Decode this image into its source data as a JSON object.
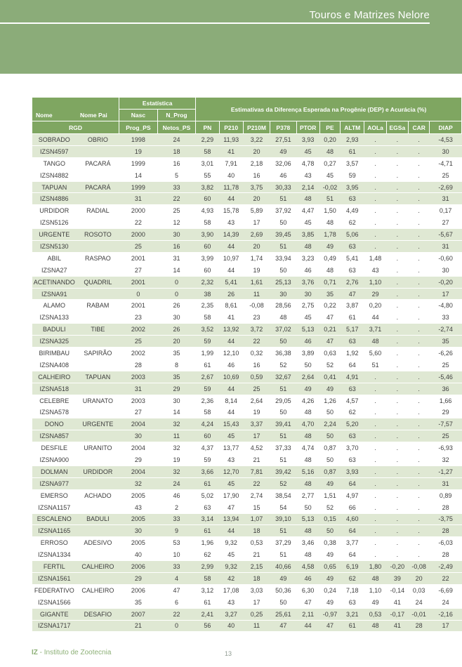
{
  "banner": {
    "title": "Touros e Matrizes Nelore"
  },
  "footer": {
    "org_bold": "IZ",
    "org_rest": " - Instituto de Zootecnia",
    "page_number": "13"
  },
  "colors": {
    "banner_green": "#8bac79",
    "header_green": "#7fa661",
    "row_green": "#dfe8d3",
    "text_dark": "#3d3d3d",
    "footer_green": "#8db077",
    "page_num_gray": "#8f9b91"
  },
  "table": {
    "header": {
      "nome": "Nome",
      "nome_pai": "Nome Pai",
      "rgd": "RGD",
      "estatistica": "Estatística",
      "nasc": "Nasc",
      "n_prog": "N_Prog",
      "prog_ps": "Prog_PS",
      "netos_ps": "Netos_PS",
      "dep_title": "Estimativas da Diferença Esperada na Progênie (DEP) e Acurácia (%)",
      "dep_cols": [
        "PN",
        "P210",
        "P210M",
        "P378",
        "PTOR",
        "PE",
        "ALTM",
        "AOLa",
        "EGSa",
        "CAR",
        "DIAP"
      ]
    },
    "rows": [
      {
        "nome": "SOBRADO",
        "rgd": "IZSN4597",
        "pai": "OBRIO",
        "dep": [
          "1998",
          "24",
          "2,29",
          "11,93",
          "3,22",
          "27,51",
          "3,93",
          "0,20",
          "2,93",
          ".",
          ".",
          ".",
          "-4,53"
        ],
        "acc": [
          "19",
          "18",
          "58",
          "41",
          "20",
          "49",
          "45",
          "48",
          "61",
          ".",
          ".",
          ".",
          "30"
        ]
      },
      {
        "nome": "TANGO",
        "rgd": "IZSN4882",
        "pai": "PACARÁ",
        "dep": [
          "1999",
          "16",
          "3,01",
          "7,91",
          "2,18",
          "32,06",
          "4,78",
          "0,27",
          "3,57",
          ".",
          ".",
          ".",
          "-4,71"
        ],
        "acc": [
          "14",
          "5",
          "55",
          "40",
          "16",
          "46",
          "43",
          "45",
          "59",
          ".",
          ".",
          ".",
          "25"
        ]
      },
      {
        "nome": "TAPUAN",
        "rgd": "IZSN4886",
        "pai": "PACARÁ",
        "dep": [
          "1999",
          "33",
          "3,82",
          "11,78",
          "3,75",
          "30,33",
          "2,14",
          "-0,02",
          "3,95",
          ".",
          ".",
          ".",
          "-2,69"
        ],
        "acc": [
          "31",
          "22",
          "60",
          "44",
          "20",
          "51",
          "48",
          "51",
          "63",
          ".",
          ".",
          ".",
          "31"
        ]
      },
      {
        "nome": "URDIDOR",
        "rgd": "IZSN5126",
        "pai": "RADIAL",
        "dep": [
          "2000",
          "25",
          "4,93",
          "15,78",
          "5,89",
          "37,92",
          "4,47",
          "1,50",
          "4,49",
          ".",
          ".",
          ".",
          "0,17"
        ],
        "acc": [
          "22",
          "12",
          "58",
          "43",
          "17",
          "50",
          "45",
          "48",
          "62",
          ".",
          ".",
          ".",
          "27"
        ]
      },
      {
        "nome": "URGENTE",
        "rgd": "IZSN5130",
        "pai": "ROSOTO",
        "dep": [
          "2000",
          "30",
          "3,90",
          "14,39",
          "2,69",
          "39,45",
          "3,85",
          "1,78",
          "5,06",
          ".",
          ".",
          ".",
          "-5,67"
        ],
        "acc": [
          "25",
          "16",
          "60",
          "44",
          "20",
          "51",
          "48",
          "49",
          "63",
          ".",
          ".",
          ".",
          "31"
        ]
      },
      {
        "nome": "ABIL",
        "rgd": "IZSNA27",
        "pai": "RASPAO",
        "dep": [
          "2001",
          "31",
          "3,99",
          "10,97",
          "1,74",
          "33,94",
          "3,23",
          "0,49",
          "5,41",
          "1,48",
          ".",
          ".",
          "-0,60"
        ],
        "acc": [
          "27",
          "14",
          "60",
          "44",
          "19",
          "50",
          "46",
          "48",
          "63",
          "43",
          ".",
          ".",
          "30"
        ]
      },
      {
        "nome": "ACETINANDO",
        "rgd": "IZSNA91",
        "pai": "QUADRIL",
        "dep": [
          "2001",
          "0",
          "2,32",
          "5,41",
          "1,61",
          "25,13",
          "3,76",
          "0,71",
          "2,76",
          "1,10",
          ".",
          ".",
          "-0,20"
        ],
        "acc": [
          "0",
          "0",
          "38",
          "26",
          "11",
          "30",
          "30",
          "35",
          "47",
          "29",
          ".",
          ".",
          "17"
        ]
      },
      {
        "nome": "ALAMO",
        "rgd": "IZSNA133",
        "pai": "RABAM",
        "dep": [
          "2001",
          "26",
          "2,35",
          "8,61",
          "-0,08",
          "28,56",
          "2,75",
          "0,22",
          "3,87",
          "0,20",
          ".",
          ".",
          "-4,80"
        ],
        "acc": [
          "23",
          "30",
          "58",
          "41",
          "23",
          "48",
          "45",
          "47",
          "61",
          "44",
          ".",
          ".",
          "33"
        ]
      },
      {
        "nome": "BADULI",
        "rgd": "IZSNA325",
        "pai": "TIBE",
        "dep": [
          "2002",
          "26",
          "3,52",
          "13,92",
          "3,72",
          "37,02",
          "5,13",
          "0,21",
          "5,17",
          "3,71",
          ".",
          ".",
          "-2,74"
        ],
        "acc": [
          "25",
          "20",
          "59",
          "44",
          "22",
          "50",
          "46",
          "47",
          "63",
          "48",
          ".",
          ".",
          "35"
        ]
      },
      {
        "nome": "BIRIMBAU",
        "rgd": "IZSNA408",
        "pai": "SAPIRÃO",
        "dep": [
          "2002",
          "35",
          "1,99",
          "12,10",
          "0,32",
          "36,38",
          "3,89",
          "0,63",
          "1,92",
          "5,60",
          ".",
          ".",
          "-6,26"
        ],
        "acc": [
          "28",
          "8",
          "61",
          "46",
          "16",
          "52",
          "50",
          "52",
          "64",
          "51",
          ".",
          ".",
          "25"
        ]
      },
      {
        "nome": "CALHEIRO",
        "rgd": "IZSNA518",
        "pai": "TAPUAN",
        "dep": [
          "2003",
          "35",
          "2,67",
          "10,69",
          "0,59",
          "32,67",
          "2,64",
          "0,41",
          "4,91",
          ".",
          ".",
          ".",
          "-5,46"
        ],
        "acc": [
          "31",
          "29",
          "59",
          "44",
          "25",
          "51",
          "49",
          "49",
          "63",
          ".",
          ".",
          ".",
          "36"
        ]
      },
      {
        "nome": "CELEBRE",
        "rgd": "IZSNA578",
        "pai": "URANATO",
        "dep": [
          "2003",
          "30",
          "2,36",
          "8,14",
          "2,64",
          "29,05",
          "4,26",
          "1,26",
          "4,57",
          ".",
          ".",
          ".",
          "1,66"
        ],
        "acc": [
          "27",
          "14",
          "58",
          "44",
          "19",
          "50",
          "48",
          "50",
          "62",
          ".",
          ".",
          ".",
          "29"
        ]
      },
      {
        "nome": "DONO",
        "rgd": "IZSNA857",
        "pai": "URGENTE",
        "dep": [
          "2004",
          "32",
          "4,24",
          "15,43",
          "3,37",
          "39,41",
          "4,70",
          "2,24",
          "5,20",
          ".",
          ".",
          ".",
          "-7,57"
        ],
        "acc": [
          "30",
          "11",
          "60",
          "45",
          "17",
          "51",
          "48",
          "50",
          "63",
          ".",
          ".",
          ".",
          "25"
        ]
      },
      {
        "nome": "DESFILE",
        "rgd": "IZSNA900",
        "pai": "URANITO",
        "dep": [
          "2004",
          "32",
          "4,37",
          "13,77",
          "4,52",
          "37,33",
          "4,74",
          "0,87",
          "3,70",
          ".",
          ".",
          ".",
          "-6,93"
        ],
        "acc": [
          "29",
          "19",
          "59",
          "43",
          "21",
          "51",
          "48",
          "50",
          "63",
          ".",
          ".",
          ".",
          "32"
        ]
      },
      {
        "nome": "DOLMAN",
        "rgd": "IZSNA977",
        "pai": "URDIDOR",
        "dep": [
          "2004",
          "32",
          "3,66",
          "12,70",
          "7,81",
          "39,42",
          "5,16",
          "0,87",
          "3,93",
          ".",
          ".",
          ".",
          "-1,27"
        ],
        "acc": [
          "32",
          "24",
          "61",
          "45",
          "22",
          "52",
          "48",
          "49",
          "64",
          ".",
          ".",
          ".",
          "31"
        ]
      },
      {
        "nome": "EMERSO",
        "rgd": "IZSNA1157",
        "pai": "ACHADO",
        "dep": [
          "2005",
          "46",
          "5,02",
          "17,90",
          "2,74",
          "38,54",
          "2,77",
          "1,51",
          "4,97",
          ".",
          ".",
          ".",
          "0,89"
        ],
        "acc": [
          "43",
          "2",
          "63",
          "47",
          "15",
          "54",
          "50",
          "52",
          "66",
          ".",
          ".",
          ".",
          "28"
        ]
      },
      {
        "nome": "ESCALENO",
        "rgd": "IZSNA1165",
        "pai": "BADULI",
        "dep": [
          "2005",
          "33",
          "3,14",
          "13,94",
          "1,07",
          "39,10",
          "5,13",
          "0,15",
          "4,60",
          ".",
          ".",
          ".",
          "-3,75"
        ],
        "acc": [
          "30",
          "9",
          "61",
          "44",
          "18",
          "51",
          "48",
          "50",
          "64",
          ".",
          ".",
          ".",
          "28"
        ]
      },
      {
        "nome": "ERROSO",
        "rgd": "IZSNA1334",
        "pai": "ADESIVO",
        "dep": [
          "2005",
          "53",
          "1,96",
          "9,32",
          "0,53",
          "37,29",
          "3,46",
          "0,38",
          "3,77",
          ".",
          ".",
          ".",
          "-6,03"
        ],
        "acc": [
          "40",
          "10",
          "62",
          "45",
          "21",
          "51",
          "48",
          "49",
          "64",
          ".",
          ".",
          ".",
          "28"
        ]
      },
      {
        "nome": "FERTIL",
        "rgd": "IZSNA1561",
        "pai": "CALHEIRO",
        "dep": [
          "2006",
          "33",
          "2,99",
          "9,32",
          "2,15",
          "40,66",
          "4,58",
          "0,65",
          "6,19",
          "1,80",
          "-0,20",
          "-0,08",
          "-2,49"
        ],
        "acc": [
          "29",
          "4",
          "58",
          "42",
          "18",
          "49",
          "46",
          "49",
          "62",
          "48",
          "39",
          "20",
          "22"
        ]
      },
      {
        "nome": "FEDERATIVO",
        "rgd": "IZSNA1566",
        "pai": "CALHEIRO",
        "dep": [
          "2006",
          "47",
          "3,12",
          "17,08",
          "3,03",
          "50,36",
          "6,30",
          "0,24",
          "7,18",
          "1,10",
          "-0,14",
          "0,03",
          "-6,69"
        ],
        "acc": [
          "35",
          "6",
          "61",
          "43",
          "17",
          "50",
          "47",
          "49",
          "63",
          "49",
          "41",
          "24",
          "24"
        ]
      },
      {
        "nome": "GIGANTE",
        "rgd": "IZSNA1717",
        "pai": "DESAFIO",
        "dep": [
          "2007",
          "22",
          "2,41",
          "3,27",
          "0,25",
          "25,61",
          "2,11",
          "-0,97",
          "3,21",
          "0,53",
          "-0,17",
          "-0,01",
          "-2,16"
        ],
        "acc": [
          "21",
          "0",
          "56",
          "40",
          "11",
          "47",
          "44",
          "47",
          "61",
          "48",
          "41",
          "28",
          "17"
        ]
      }
    ]
  }
}
